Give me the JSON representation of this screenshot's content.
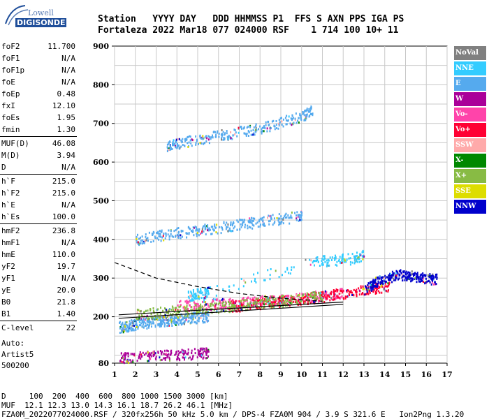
{
  "logo": {
    "top": "Lowell",
    "bottom": "DIGISONDE"
  },
  "header": {
    "line1": "Station   YYYY DAY   DDD HHMMSS P1  FFS S AXN PPS IGA PS",
    "line2": "Fortaleza 2022 Mar18 077 024000 RSF    1 714 100 10+ 11"
  },
  "params_groups": [
    [
      [
        "foF2",
        "11.700"
      ],
      [
        "foF1",
        "N/A"
      ],
      [
        "foF1p",
        "N/A"
      ],
      [
        "foE",
        "N/A"
      ],
      [
        "foEp",
        "0.48"
      ],
      [
        "fxI",
        "12.10"
      ],
      [
        "foEs",
        "1.95"
      ],
      [
        "fmin",
        "1.30"
      ]
    ],
    [
      [
        "MUF(D)",
        "46.08"
      ],
      [
        "M(D)",
        "3.94"
      ],
      [
        "D",
        "N/A"
      ]
    ],
    [
      [
        "h`F",
        "215.0"
      ],
      [
        "h`F2",
        "215.0"
      ],
      [
        "h`E",
        "N/A"
      ],
      [
        "h`Es",
        "100.0"
      ]
    ],
    [
      [
        "hmF2",
        "236.8"
      ],
      [
        "hmF1",
        "N/A"
      ],
      [
        "hmE",
        "110.0"
      ],
      [
        "yF2",
        "19.7"
      ],
      [
        "yF1",
        "N/A"
      ],
      [
        "yE",
        "20.0"
      ],
      [
        "B0",
        "21.8"
      ],
      [
        "B1",
        "1.40"
      ]
    ],
    [
      [
        "C-level",
        "22"
      ]
    ]
  ],
  "auto": [
    "Auto:",
    "Artist5",
    "500200"
  ],
  "legend": [
    {
      "label": "NoVal",
      "color": "#808080"
    },
    {
      "label": "NNE",
      "color": "#33ccff"
    },
    {
      "label": "E",
      "color": "#55aaee"
    },
    {
      "label": "W",
      "color": "#aa0099"
    },
    {
      "label": "Vo-",
      "color": "#ff44aa"
    },
    {
      "label": "Vo+",
      "color": "#ff0033"
    },
    {
      "label": "SSW",
      "color": "#ffaaaa"
    },
    {
      "label": "X-",
      "color": "#008800"
    },
    {
      "label": "X+",
      "color": "#88bb44"
    },
    {
      "label": "SSE",
      "color": "#dddd00"
    },
    {
      "label": "NNW",
      "color": "#0000cc"
    }
  ],
  "footer": [
    "D     100  200  400  600  800 1000 1500 3000 [km]",
    "MUF  12.1 12.3 13.0 14.3 16.1 18.7 26.2 46.1 [MHz]",
    "FZA0M_2022077024000.RSF / 320fx256h 50 kHz 5.0 km / DPS-4 FZA0M 904 / 3.9 S 321.6 E   Ion2Png 1.3.20"
  ],
  "chart_data": {
    "type": "scatter",
    "title": "",
    "xlabel": "",
    "ylabel": "",
    "xlim": [
      1,
      17
    ],
    "ylim": [
      80,
      900
    ],
    "xticks": [
      1,
      2,
      3,
      4,
      5,
      6,
      7,
      8,
      9,
      10,
      11,
      12,
      13,
      14,
      15,
      16,
      17
    ],
    "yticks": [
      80,
      200,
      300,
      400,
      500,
      600,
      700,
      800,
      900
    ],
    "grid": true,
    "traces": [
      {
        "name": "E",
        "x": [
          1.2,
          1.6,
          2.0,
          2.5,
          3.0,
          3.5,
          4.0,
          4.5,
          5.0,
          5.5
        ],
        "y": [
          175,
          178,
          182,
          186,
          190,
          192,
          195,
          198,
          200,
          202
        ]
      },
      {
        "name": "Vo-",
        "x": [
          4.0,
          5.0,
          6.0,
          7.0,
          8.0,
          9.0,
          10.0,
          11.0,
          12.0
        ],
        "y": [
          230,
          232,
          235,
          238,
          242,
          246,
          250,
          256,
          262
        ]
      },
      {
        "name": "Vo+",
        "x": [
          6.5,
          7.5,
          8.5,
          9.5,
          10.5,
          11.5,
          12.5,
          13.5,
          14.2
        ],
        "y": [
          228,
          232,
          238,
          244,
          250,
          258,
          266,
          274,
          283
        ]
      },
      {
        "name": "X+",
        "x": [
          2.0,
          3.0,
          4.0,
          5.0,
          6.0,
          7.0,
          8.0,
          9.0,
          10.0,
          11.0
        ],
        "y": [
          207,
          212,
          216,
          220,
          226,
          232,
          238,
          244,
          250,
          256
        ]
      },
      {
        "name": "NNE",
        "x": [
          4.5,
          5.0,
          5.5,
          10.5,
          11.5,
          12.5,
          13.0
        ],
        "y": [
          256,
          260,
          265,
          345,
          348,
          352,
          362
        ]
      },
      {
        "name": "W",
        "x": [
          1.2,
          2.0,
          3.0,
          4.0,
          5.0,
          5.5
        ],
        "y": [
          95,
          98,
          100,
          103,
          107,
          110
        ]
      },
      {
        "name": "NNW",
        "x": [
          13.0,
          13.5,
          14.0,
          14.5,
          15.0,
          15.5,
          16.0,
          16.5
        ],
        "y": [
          270,
          290,
          300,
          310,
          310,
          305,
          300,
          300
        ]
      },
      {
        "name": "E",
        "x": [
          2.0,
          3.0,
          4.0,
          5.0,
          6.0,
          7.0,
          8.0,
          9.0,
          10.0
        ],
        "y": [
          400,
          410,
          418,
          425,
          432,
          440,
          448,
          455,
          462
        ]
      },
      {
        "name": "E",
        "x": [
          3.5,
          4.0,
          5.0,
          6.0,
          7.0,
          8.0,
          9.0,
          10.0,
          10.5
        ],
        "y": [
          640,
          650,
          660,
          670,
          680,
          690,
          705,
          720,
          735
        ]
      }
    ],
    "fit_lines": [
      {
        "style": "solid",
        "x": [
          1.2,
          12.0
        ],
        "y": [
          205,
          238
        ]
      },
      {
        "style": "solid",
        "x": [
          1.2,
          12.0
        ],
        "y": [
          196,
          232
        ]
      },
      {
        "style": "dashed",
        "x": [
          1.0,
          3.0,
          5.0,
          7.0,
          9.0,
          11.0
        ],
        "y": [
          340,
          300,
          278,
          260,
          248,
          240
        ]
      }
    ]
  }
}
